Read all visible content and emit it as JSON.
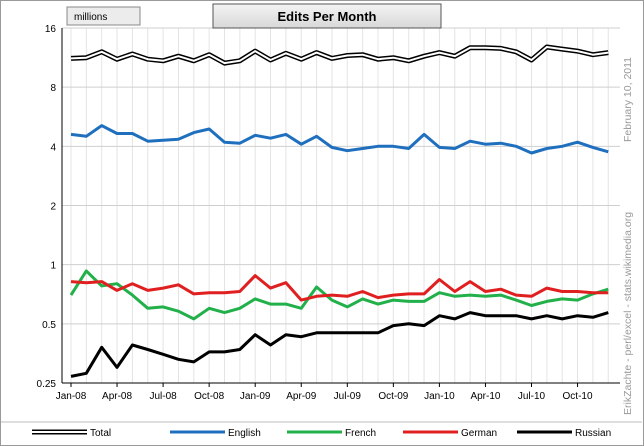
{
  "chart_data": {
    "type": "line",
    "title": "Edits Per Month",
    "unit_label": "millions",
    "y_scale": "log",
    "ylim": [
      0.25,
      16
    ],
    "y_ticks": [
      16,
      8,
      4,
      2,
      1,
      0.5,
      0.25
    ],
    "y_tick_labels": [
      "16",
      "8",
      "4",
      "2",
      "1",
      "0.5",
      "0.25"
    ],
    "x": [
      "2008-01",
      "2008-02",
      "2008-03",
      "2008-04",
      "2008-05",
      "2008-06",
      "2008-07",
      "2008-08",
      "2008-09",
      "2008-10",
      "2008-11",
      "2008-12",
      "2009-01",
      "2009-02",
      "2009-03",
      "2009-04",
      "2009-05",
      "2009-06",
      "2009-07",
      "2009-08",
      "2009-09",
      "2009-10",
      "2009-11",
      "2009-12",
      "2010-01",
      "2010-02",
      "2010-03",
      "2010-04",
      "2010-05",
      "2010-06",
      "2010-07",
      "2010-08",
      "2010-09",
      "2010-10",
      "2010-11",
      "2010-12"
    ],
    "x_tick_labels": [
      "Jan-08",
      "Apr-08",
      "Jul-08",
      "Oct-08",
      "Jan-09",
      "Apr-09",
      "Jul-09",
      "Oct-09",
      "Jan-10",
      "Apr-10",
      "Jul-10",
      "Oct-10"
    ],
    "x_tick_every": 3,
    "grid": true,
    "legend_position": "bottom",
    "side_note": "ErikZachte - perl/excel - stats.wikimedia.org",
    "date_note": "February 10, 2011",
    "series": [
      {
        "name": "Total",
        "color": "#000000",
        "style": "double",
        "values": [
          11.2,
          11.3,
          12.1,
          11.1,
          11.8,
          11.1,
          10.9,
          11.5,
          10.9,
          11.7,
          10.6,
          10.9,
          12.2,
          11.0,
          11.9,
          11.1,
          12.0,
          11.2,
          11.6,
          11.7,
          11.1,
          11.3,
          10.9,
          11.5,
          12.0,
          11.5,
          12.7,
          12.7,
          12.6,
          12.1,
          11.0,
          12.8,
          12.5,
          12.2,
          11.7,
          12.0
        ]
      },
      {
        "name": "English",
        "color": "#1f6fbf",
        "style": "solid",
        "values": [
          4.6,
          4.5,
          5.1,
          4.65,
          4.65,
          4.25,
          4.3,
          4.35,
          4.7,
          4.9,
          4.2,
          4.15,
          4.55,
          4.4,
          4.6,
          4.1,
          4.5,
          3.95,
          3.8,
          3.9,
          4.0,
          4.0,
          3.9,
          4.6,
          3.95,
          3.9,
          4.25,
          4.1,
          4.15,
          4.0,
          3.7,
          3.9,
          4.0,
          4.2,
          3.95,
          3.75
        ]
      },
      {
        "name": "French",
        "color": "#22b04a",
        "style": "solid",
        "values": [
          0.7,
          0.93,
          0.78,
          0.8,
          0.7,
          0.6,
          0.61,
          0.58,
          0.53,
          0.6,
          0.57,
          0.6,
          0.67,
          0.63,
          0.63,
          0.6,
          0.77,
          0.66,
          0.61,
          0.67,
          0.63,
          0.66,
          0.65,
          0.65,
          0.72,
          0.69,
          0.7,
          0.69,
          0.7,
          0.66,
          0.62,
          0.65,
          0.67,
          0.66,
          0.71,
          0.75
        ]
      },
      {
        "name": "German",
        "color": "#e02020",
        "style": "solid",
        "values": [
          0.82,
          0.81,
          0.82,
          0.74,
          0.8,
          0.74,
          0.76,
          0.79,
          0.71,
          0.72,
          0.72,
          0.73,
          0.88,
          0.76,
          0.81,
          0.66,
          0.69,
          0.7,
          0.69,
          0.73,
          0.68,
          0.7,
          0.71,
          0.71,
          0.84,
          0.73,
          0.82,
          0.73,
          0.75,
          0.7,
          0.69,
          0.76,
          0.73,
          0.73,
          0.72,
          0.72
        ]
      },
      {
        "name": "Russian",
        "color": "#000000",
        "style": "solid",
        "values": [
          0.27,
          0.28,
          0.38,
          0.3,
          0.39,
          0.37,
          0.35,
          0.33,
          0.32,
          0.36,
          0.36,
          0.37,
          0.44,
          0.39,
          0.44,
          0.43,
          0.45,
          0.45,
          0.45,
          0.45,
          0.45,
          0.49,
          0.5,
          0.49,
          0.55,
          0.53,
          0.57,
          0.55,
          0.55,
          0.55,
          0.53,
          0.55,
          0.53,
          0.55,
          0.54,
          0.57
        ]
      }
    ]
  }
}
